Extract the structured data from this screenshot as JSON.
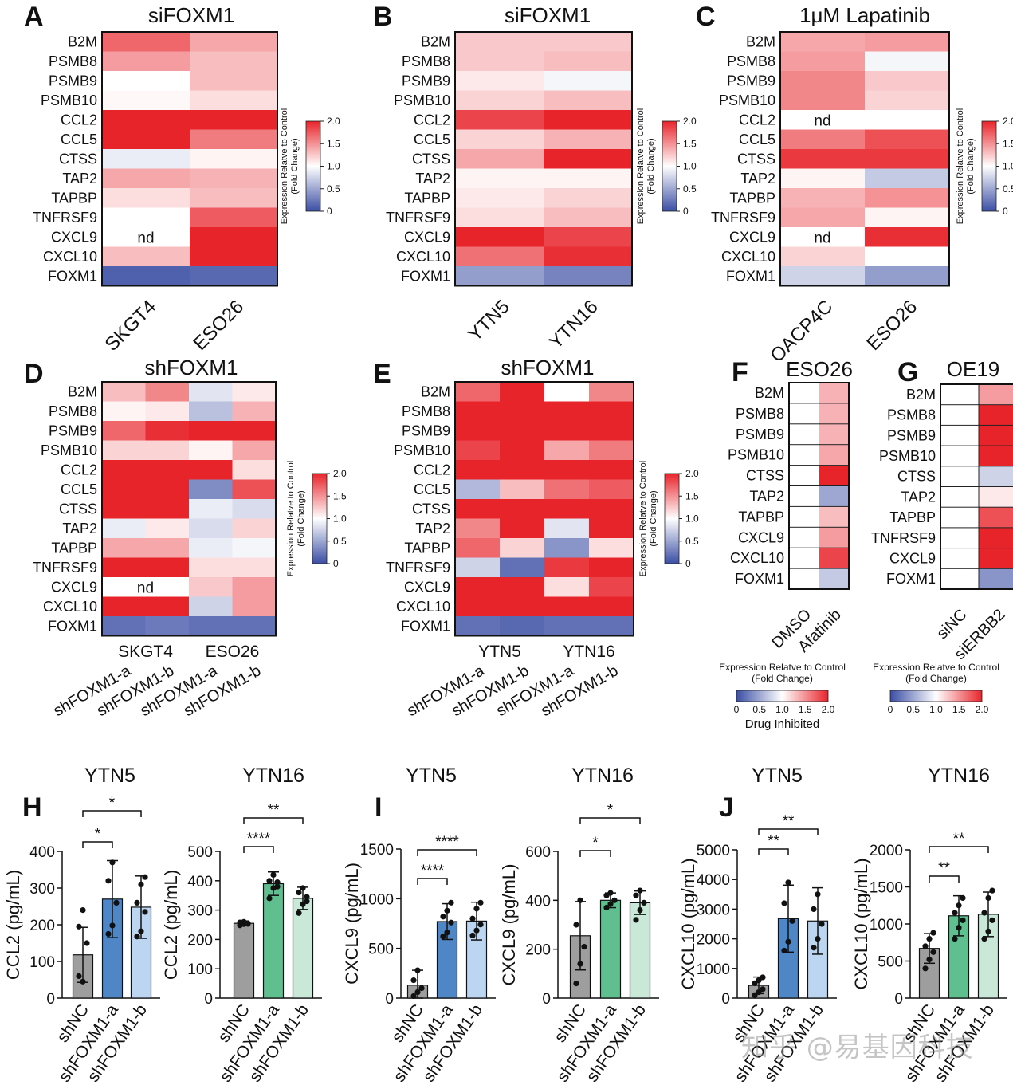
{
  "watermark": "知乎 @易基因科技",
  "scale": {
    "label_line1": "Expression Relatve to Control",
    "label_line2": "(Fold Change)",
    "ticks": [
      "0",
      "0.5",
      "1.0",
      "1.5",
      "2.0"
    ],
    "tick_values": [
      0,
      0.5,
      1.0,
      1.5,
      2.0
    ],
    "vmin": 0,
    "vmid": 1,
    "vmax": 2,
    "colors": {
      "low": "#3b4ea4",
      "mid": "#ffffff",
      "high": "#e8242b"
    },
    "drug_note": "Drug Inhibited"
  },
  "chart_data": [
    {
      "id": "A",
      "type": "heatmap",
      "letter": "A",
      "title": "siFOXM1",
      "rows": [
        "B2M",
        "PSMB8",
        "PSMB9",
        "PSMB10",
        "CCL2",
        "CCL5",
        "CTSS",
        "TAP2",
        "TAPBP",
        "TNFRSF9",
        "CXCL9",
        "CXCL10",
        "FOXM1"
      ],
      "columns": [
        "SKGT4",
        "ESO26"
      ],
      "values": [
        [
          1.7,
          1.4
        ],
        [
          1.45,
          1.3
        ],
        [
          1.0,
          1.3
        ],
        [
          1.03,
          1.15
        ],
        [
          2.0,
          2.0
        ],
        [
          2.0,
          1.6
        ],
        [
          0.9,
          1.05
        ],
        [
          1.4,
          1.35
        ],
        [
          1.15,
          1.3
        ],
        [
          1.0,
          1.75
        ],
        [
          null,
          2.0
        ],
        [
          1.3,
          2.0
        ],
        [
          0.1,
          0.15
        ]
      ],
      "nd_label": "nd"
    },
    {
      "id": "B",
      "type": "heatmap",
      "letter": "B",
      "title": "siFOXM1",
      "rows": [
        "B2M",
        "PSMB8",
        "PSMB9",
        "PSMB10",
        "CCL2",
        "CCL5",
        "CTSS",
        "TAP2",
        "TAPBP",
        "TNFRSF9",
        "CXCL9",
        "CXCL10",
        "FOXM1"
      ],
      "columns": [
        "YTN5",
        "YTN16"
      ],
      "values": [
        [
          1.25,
          1.25
        ],
        [
          1.25,
          1.3
        ],
        [
          1.1,
          0.95
        ],
        [
          1.2,
          1.3
        ],
        [
          1.85,
          2.0
        ],
        [
          1.2,
          1.35
        ],
        [
          1.4,
          2.0
        ],
        [
          1.05,
          1.05
        ],
        [
          1.1,
          1.2
        ],
        [
          1.15,
          1.3
        ],
        [
          2.0,
          1.85
        ],
        [
          1.65,
          1.95
        ],
        [
          0.45,
          0.3
        ]
      ],
      "nd_label": "nd"
    },
    {
      "id": "C",
      "type": "heatmap",
      "letter": "C",
      "title": "1μM Lapatinib",
      "rows": [
        "B2M",
        "PSMB8",
        "PSMB9",
        "PSMB10",
        "CCL2",
        "CCL5",
        "CTSS",
        "TAP2",
        "TAPBP",
        "TNFRSF9",
        "CXCL9",
        "CXCL10",
        "FOXM1"
      ],
      "columns": [
        "OACP4C",
        "ESO26"
      ],
      "values": [
        [
          1.4,
          1.45
        ],
        [
          1.45,
          0.95
        ],
        [
          1.55,
          1.25
        ],
        [
          1.55,
          1.2
        ],
        [
          null,
          1.0
        ],
        [
          1.6,
          1.8
        ],
        [
          1.9,
          1.9
        ],
        [
          1.05,
          0.7
        ],
        [
          1.35,
          1.5
        ],
        [
          1.4,
          1.05
        ],
        [
          null,
          1.95
        ],
        [
          1.2,
          1.0
        ],
        [
          0.75,
          0.45
        ]
      ],
      "nd_label": "nd"
    },
    {
      "id": "D",
      "type": "heatmap",
      "letter": "D",
      "title": "shFOXM1",
      "rows": [
        "B2M",
        "PSMB8",
        "PSMB9",
        "PSMB10",
        "CCL2",
        "CCL5",
        "CTSS",
        "TAP2",
        "TAPBP",
        "TNFRSF9",
        "CXCL9",
        "CXCL10",
        "FOXM1"
      ],
      "columns": [
        "shFOXM1-a",
        "shFOXM1-b",
        "shFOXM1-a",
        "shFOXM1-b"
      ],
      "groups": [
        "SKGT4",
        "ESO26"
      ],
      "values": [
        [
          1.3,
          1.55
        ],
        [
          1.05,
          1.1
        ],
        [
          1.7,
          1.95
        ],
        [
          1.2,
          1.2
        ],
        [
          2.0,
          2.0
        ],
        [
          2.0,
          2.0
        ],
        [
          2.0,
          2.0
        ],
        [
          0.9,
          1.1
        ],
        [
          1.4,
          1.4
        ],
        [
          2.0,
          2.0
        ],
        [
          null,
          null
        ],
        [
          2.0,
          2.0
        ],
        [
          0.2,
          0.25
        ]
      ],
      "values_right": [
        [
          0.85,
          1.1
        ],
        [
          0.65,
          1.35
        ],
        [
          2.0,
          2.0
        ],
        [
          1.05,
          1.4
        ],
        [
          2.0,
          1.15
        ],
        [
          0.35,
          1.8
        ],
        [
          0.9,
          0.8
        ],
        [
          0.8,
          1.2
        ],
        [
          0.9,
          0.95
        ],
        [
          1.15,
          1.15
        ],
        [
          1.25,
          1.45
        ],
        [
          0.75,
          1.45
        ],
        [
          0.2,
          0.2
        ]
      ],
      "nd_label": "nd"
    },
    {
      "id": "E",
      "type": "heatmap",
      "letter": "E",
      "title": "shFOXM1",
      "rows": [
        "B2M",
        "PSMB8",
        "PSMB9",
        "PSMB10",
        "CCL2",
        "CCL5",
        "CTSS",
        "TAP2",
        "TAPBP",
        "TNFRSF9",
        "CXCL9",
        "CXCL10",
        "FOXM1"
      ],
      "columns": [
        "shFOXM1-a",
        "shFOXM1-b",
        "shFOXM1-a",
        "shFOXM1-b"
      ],
      "groups": [
        "YTN5",
        "YTN16"
      ],
      "values": [
        [
          1.7,
          2.0,
          1.0,
          1.55
        ],
        [
          2.0,
          2.0,
          2.0,
          2.0
        ],
        [
          2.0,
          2.0,
          2.0,
          2.0
        ],
        [
          1.85,
          2.0,
          1.4,
          1.6
        ],
        [
          2.0,
          2.0,
          2.0,
          2.0
        ],
        [
          0.6,
          1.3,
          1.65,
          1.75
        ],
        [
          2.0,
          2.0,
          2.0,
          2.0
        ],
        [
          1.55,
          2.0,
          0.85,
          2.0
        ],
        [
          1.7,
          1.2,
          0.4,
          1.15
        ],
        [
          0.75,
          0.2,
          1.9,
          2.0
        ],
        [
          2.0,
          2.0,
          1.15,
          1.85
        ],
        [
          2.0,
          2.0,
          2.0,
          2.0
        ],
        [
          0.2,
          0.15,
          0.2,
          0.2
        ]
      ],
      "nd_label": "nd"
    },
    {
      "id": "F",
      "type": "heatmap",
      "letter": "F",
      "title": "ESO26",
      "rows": [
        "B2M",
        "PSMB8",
        "PSMB9",
        "PSMB10",
        "CTSS",
        "TAP2",
        "TAPBP",
        "CXCL9",
        "CXCL10",
        "FOXM1"
      ],
      "columns": [
        "DMSO",
        "Afatinib"
      ],
      "values": [
        [
          1.0,
          1.35
        ],
        [
          1.0,
          1.35
        ],
        [
          1.0,
          1.35
        ],
        [
          1.0,
          1.4
        ],
        [
          1.0,
          2.0
        ],
        [
          1.0,
          0.5
        ],
        [
          1.0,
          1.3
        ],
        [
          1.0,
          1.45
        ],
        [
          1.0,
          1.85
        ],
        [
          1.0,
          0.7
        ]
      ],
      "nd_label": "nd"
    },
    {
      "id": "G",
      "type": "heatmap",
      "letter": "G",
      "title": "OE19",
      "rows": [
        "B2M",
        "PSMB8",
        "PSMB9",
        "PSMB10",
        "CTSS",
        "TAP2",
        "TAPBP",
        "TNFRSF9",
        "CXCL9",
        "FOXM1"
      ],
      "columns": [
        "siNC",
        "siERBB2"
      ],
      "values": [
        [
          1.0,
          1.45
        ],
        [
          1.0,
          2.0
        ],
        [
          1.0,
          2.0
        ],
        [
          1.0,
          2.0
        ],
        [
          1.0,
          0.75
        ],
        [
          1.0,
          1.1
        ],
        [
          1.0,
          1.8
        ],
        [
          1.0,
          2.0
        ],
        [
          1.0,
          2.0
        ],
        [
          1.0,
          0.4
        ]
      ],
      "nd_label": "nd"
    },
    {
      "id": "H1",
      "type": "bar",
      "letter": "H",
      "title": "YTN5",
      "ylabel": "CCL2 (pg/mL)",
      "ylim": [
        0,
        400
      ],
      "yticks": [
        0,
        100,
        200,
        300,
        400
      ],
      "categories": [
        "shNC",
        "shFOXM1-a",
        "shFOXM1-b"
      ],
      "values": [
        118,
        270,
        248
      ],
      "errors": [
        75,
        105,
        85
      ],
      "points": [
        [
          60,
          45,
          150,
          195,
          240
        ],
        [
          175,
          198,
          260,
          320,
          370
        ],
        [
          168,
          182,
          235,
          260,
          310,
          330
        ]
      ],
      "colors": [
        "#9e9e9e",
        "#4f86c6",
        "#bcd6f2"
      ],
      "sig": [
        {
          "a": 0,
          "b": 1,
          "label": "*",
          "level": 0
        },
        {
          "a": 0,
          "b": 2,
          "label": "*",
          "level": 1
        }
      ]
    },
    {
      "id": "H2",
      "type": "bar",
      "letter": "",
      "title": "YTN16",
      "ylabel": "CCL2 (pg/mL)",
      "ylim": [
        0,
        500
      ],
      "yticks": [
        0,
        100,
        200,
        300,
        400,
        500
      ],
      "categories": [
        "shNC",
        "shFOXM1-a",
        "shFOXM1-b"
      ],
      "values": [
        255,
        390,
        340
      ],
      "errors": [
        8,
        40,
        38
      ],
      "points": [
        [
          248,
          252,
          255,
          258,
          260,
          253
        ],
        [
          340,
          375,
          395,
          400,
          420,
          380
        ],
        [
          290,
          320,
          345,
          360,
          375,
          330
        ]
      ],
      "colors": [
        "#9e9e9e",
        "#5fbf8f",
        "#c9e8d8"
      ],
      "sig": [
        {
          "a": 0,
          "b": 1,
          "label": "****",
          "level": 0
        },
        {
          "a": 0,
          "b": 2,
          "label": "**",
          "level": 1
        }
      ]
    },
    {
      "id": "I1",
      "type": "bar",
      "letter": "I",
      "title": "YTN5",
      "ylabel": "CXCL9 (pg/mL)",
      "ylim": [
        0,
        1500
      ],
      "yticks": [
        0,
        500,
        1000,
        1500
      ],
      "categories": [
        "shNC",
        "shFOXM1-a",
        "shFOXM1-b"
      ],
      "values": [
        130,
        770,
        775
      ],
      "errors": [
        150,
        180,
        190
      ],
      "points": [
        [
          20,
          60,
          100,
          180,
          280
        ],
        [
          620,
          660,
          760,
          820,
          880,
          960
        ],
        [
          630,
          680,
          740,
          800,
          900,
          960
        ]
      ],
      "colors": [
        "#9e9e9e",
        "#4f86c6",
        "#bcd6f2"
      ],
      "sig": [
        {
          "a": 0,
          "b": 1,
          "label": "****",
          "level": 0
        },
        {
          "a": 0,
          "b": 2,
          "label": "****",
          "level": 1
        }
      ]
    },
    {
      "id": "I2",
      "type": "bar",
      "letter": "",
      "title": "YTN16",
      "ylabel": "CXCL9 (pg/mL)",
      "ylim": [
        0,
        600
      ],
      "yticks": [
        0,
        200,
        400,
        600
      ],
      "categories": [
        "shNC",
        "shFOXM1-a",
        "shFOXM1-b"
      ],
      "values": [
        255,
        400,
        390
      ],
      "errors": [
        140,
        30,
        48
      ],
      "points": [
        [
          60,
          140,
          210,
          300,
          400
        ],
        [
          370,
          385,
          400,
          420,
          430
        ],
        [
          320,
          360,
          390,
          420,
          440
        ]
      ],
      "colors": [
        "#9e9e9e",
        "#5fbf8f",
        "#c9e8d8"
      ],
      "sig": [
        {
          "a": 0,
          "b": 1,
          "label": "*",
          "level": 0
        },
        {
          "a": 0,
          "b": 2,
          "label": "*",
          "level": 1
        }
      ]
    },
    {
      "id": "J1",
      "type": "bar",
      "letter": "J",
      "title": "YTN5",
      "ylabel": "CXCL10 (pg/mL)",
      "ylim": [
        0,
        5000
      ],
      "yticks": [
        0,
        1000,
        2000,
        3000,
        4000,
        5000
      ],
      "categories": [
        "shNC",
        "shFOXM1-a",
        "shFOXM1-b"
      ],
      "values": [
        430,
        2680,
        2600
      ],
      "errors": [
        280,
        1130,
        1120
      ],
      "points": [
        [
          100,
          200,
          300,
          500,
          600,
          700
        ],
        [
          1600,
          1900,
          2600,
          3200,
          3900
        ],
        [
          1700,
          2000,
          2500,
          3000,
          3500
        ]
      ],
      "colors": [
        "#9e9e9e",
        "#4f86c6",
        "#bcd6f2"
      ],
      "sig": [
        {
          "a": 0,
          "b": 1,
          "label": "**",
          "level": 0
        },
        {
          "a": 0,
          "b": 2,
          "label": "**",
          "level": 1
        }
      ]
    },
    {
      "id": "J2",
      "type": "bar",
      "letter": "",
      "title": "YTN16",
      "ylabel": "CXCL10 (pg/mL)",
      "ylim": [
        0,
        2000
      ],
      "yticks": [
        0,
        500,
        1000,
        1500,
        2000
      ],
      "categories": [
        "shNC",
        "shFOXM1-a",
        "shFOXM1-b"
      ],
      "values": [
        670,
        1110,
        1130
      ],
      "errors": [
        200,
        270,
        300
      ],
      "points": [
        [
          400,
          520,
          620,
          700,
          800,
          880
        ],
        [
          800,
          950,
          1050,
          1150,
          1250,
          1350
        ],
        [
          800,
          900,
          1050,
          1150,
          1350,
          1450
        ]
      ],
      "colors": [
        "#9e9e9e",
        "#5fbf8f",
        "#c9e8d8"
      ],
      "sig": [
        {
          "a": 0,
          "b": 1,
          "label": "**",
          "level": 0
        },
        {
          "a": 0,
          "b": 2,
          "label": "**",
          "level": 1
        }
      ]
    }
  ]
}
